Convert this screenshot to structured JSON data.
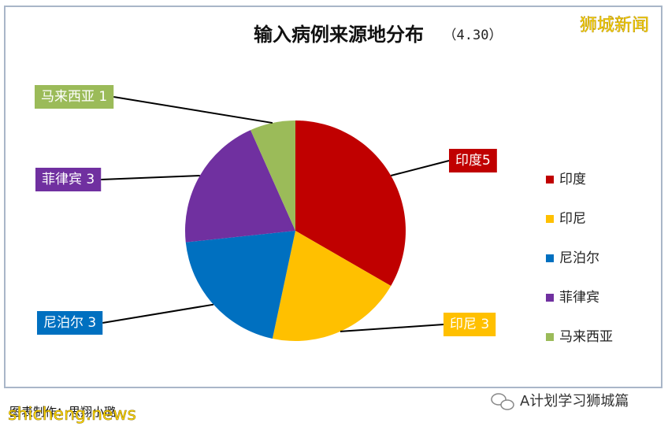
{
  "chart_data": {
    "type": "pie",
    "title": "输入病例来源地分布",
    "subtitle": "（4.30）",
    "categories": [
      "印度",
      "印尼",
      "尼泊尔",
      "菲律宾",
      "马来西亚"
    ],
    "values": [
      5,
      3,
      3,
      3,
      1
    ],
    "value_labels": [
      "印度5",
      "印尼 3",
      "尼泊尔 3",
      "菲律宾 3",
      "马来西亚 1"
    ],
    "colors": [
      "#c00000",
      "#ffc000",
      "#0070c0",
      "#7030a0",
      "#9bbb59"
    ],
    "legend": "right"
  },
  "watermarks": {
    "top_right": "狮城新闻",
    "bottom_left": "shicheng.news",
    "credit": "图表制作：思翔小璐",
    "bottom_right": "A计划学习狮城篇"
  }
}
